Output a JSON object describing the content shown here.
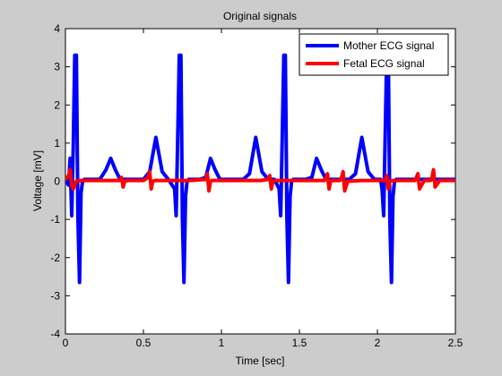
{
  "chart_data": {
    "type": "line",
    "title": "Original signals",
    "xlabel": "Time [sec]",
    "ylabel": "Voltage [mV]",
    "xlim": [
      0,
      2.5
    ],
    "ylim": [
      -4,
      4
    ],
    "xticks": [
      "0",
      "0.5",
      "1",
      "1.5",
      "2",
      "2.5"
    ],
    "yticks": [
      "-4",
      "-3",
      "-2",
      "-1",
      "0",
      "1",
      "2",
      "3",
      "4"
    ],
    "grid": false,
    "legend_position": "top-right",
    "series": [
      {
        "name": "Mother ECG signal",
        "color": "#0000ff",
        "x": [
          0,
          0.02,
          0.03,
          0.04,
          0.05,
          0.06,
          0.07,
          0.08,
          0.09,
          0.1,
          0.11,
          0.12,
          0.14,
          0.18,
          0.22,
          0.26,
          0.29,
          0.32,
          0.35,
          0.38,
          0.42,
          0.46,
          0.5,
          0.54,
          0.58,
          0.62,
          0.66,
          0.7,
          0.71,
          0.72,
          0.73,
          0.74,
          0.75,
          0.76,
          0.77,
          0.78,
          0.79,
          0.8,
          0.82,
          0.86,
          0.9,
          0.93,
          0.96,
          0.99,
          1.02,
          1.06,
          1.1,
          1.14,
          1.18,
          1.22,
          1.26,
          1.3,
          1.34,
          1.37,
          1.38,
          1.39,
          1.4,
          1.41,
          1.42,
          1.43,
          1.44,
          1.45,
          1.46,
          1.47,
          1.5,
          1.54,
          1.58,
          1.61,
          1.64,
          1.67,
          1.7,
          1.74,
          1.78,
          1.82,
          1.86,
          1.9,
          1.94,
          1.98,
          2.02,
          2.03,
          2.04,
          2.05,
          2.06,
          2.07,
          2.08,
          2.09,
          2.1,
          2.11,
          2.12,
          2.13,
          2.16,
          2.2,
          2.24,
          2.27,
          2.3,
          2.33,
          2.36,
          2.4,
          2.45,
          2.5
        ],
        "y": [
          0.05,
          -0.1,
          0.6,
          -0.9,
          0.9,
          3.3,
          3.3,
          -0.9,
          -2.65,
          -0.3,
          0.0,
          0.05,
          0.05,
          0.05,
          0.05,
          0.3,
          0.6,
          0.3,
          0.05,
          0.05,
          0.05,
          0.05,
          0.05,
          0.25,
          1.15,
          0.25,
          0.05,
          -0.2,
          -0.9,
          1.2,
          3.3,
          3.3,
          -1.0,
          -2.65,
          -0.4,
          0.0,
          0.05,
          0.05,
          0.05,
          0.05,
          0.1,
          0.6,
          0.3,
          0.05,
          0.05,
          0.05,
          0.05,
          0.05,
          0.2,
          1.15,
          0.25,
          0.05,
          0.05,
          -0.2,
          -0.9,
          1.2,
          3.3,
          3.3,
          -1.0,
          -2.65,
          -0.4,
          0.0,
          0.05,
          0.05,
          0.05,
          0.05,
          0.1,
          0.6,
          0.3,
          0.05,
          0.05,
          0.05,
          0.05,
          0.05,
          0.2,
          1.15,
          0.25,
          0.05,
          0.05,
          -0.2,
          -0.9,
          1.2,
          3.3,
          3.3,
          -1.0,
          -2.65,
          -0.4,
          0.0,
          0.05,
          0.05,
          0.05,
          0.05,
          0.05,
          0.05,
          0.05,
          0.05,
          0.05,
          0.05,
          0.05,
          0.05
        ]
      },
      {
        "name": "Fetal ECG signal",
        "color": "#ff0000",
        "x": [
          0,
          0.02,
          0.03,
          0.04,
          0.05,
          0.07,
          0.1,
          0.2,
          0.3,
          0.35,
          0.36,
          0.37,
          0.38,
          0.4,
          0.45,
          0.5,
          0.53,
          0.54,
          0.55,
          0.56,
          0.58,
          0.65,
          0.7,
          0.8,
          0.9,
          0.91,
          0.92,
          0.93,
          0.94,
          0.96,
          1.0,
          1.1,
          1.25,
          1.3,
          1.31,
          1.32,
          1.33,
          1.35,
          1.45,
          1.55,
          1.6,
          1.66,
          1.67,
          1.68,
          1.69,
          1.7,
          1.72,
          1.76,
          1.77,
          1.78,
          1.79,
          1.81,
          1.9,
          2.0,
          2.05,
          2.06,
          2.07,
          2.08,
          2.1,
          2.2,
          2.24,
          2.25,
          2.26,
          2.27,
          2.3,
          2.34,
          2.35,
          2.36,
          2.37,
          2.4,
          2.5
        ],
        "y": [
          0.05,
          0.15,
          0.3,
          -0.1,
          -0.2,
          0.0,
          0.02,
          0.02,
          0.02,
          0.02,
          0.1,
          -0.15,
          0.0,
          0.02,
          0.02,
          0.02,
          0.1,
          0.25,
          -0.2,
          0.0,
          0.02,
          0.02,
          0.02,
          0.02,
          0.05,
          0.2,
          -0.25,
          0.0,
          0.02,
          0.02,
          0.02,
          0.02,
          0.02,
          0.05,
          0.15,
          -0.2,
          0.0,
          0.02,
          0.02,
          0.02,
          0.02,
          0.02,
          0.08,
          0.2,
          -0.2,
          0.0,
          0.02,
          0.02,
          0.1,
          0.25,
          -0.25,
          0.0,
          0.02,
          0.02,
          0.02,
          0.15,
          -0.2,
          0.0,
          0.02,
          0.02,
          0.02,
          0.1,
          0.2,
          -0.2,
          0.02,
          0.02,
          0.1,
          0.3,
          -0.15,
          0.02,
          0.02
        ]
      }
    ]
  }
}
